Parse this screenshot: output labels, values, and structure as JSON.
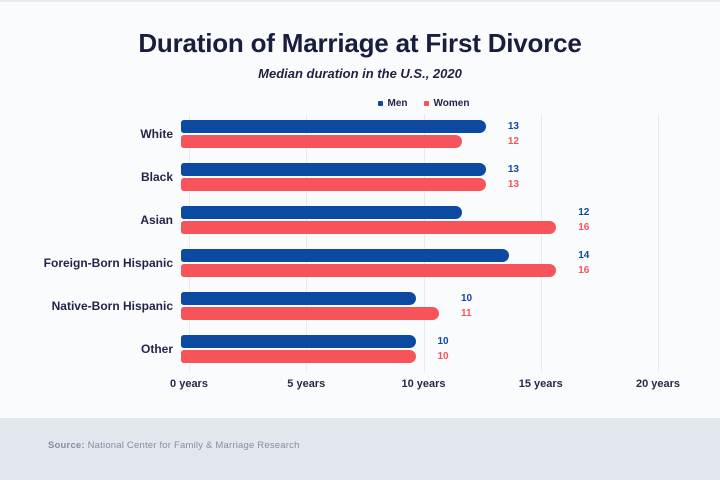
{
  "header": {
    "title": "Duration of Marriage at First Divorce",
    "subtitle": "Median duration in the U.S., 2020"
  },
  "chart_data": {
    "type": "bar",
    "orientation": "horizontal",
    "title": "Duration of Marriage at First Divorce",
    "subtitle": "Median duration in the U.S., 2020",
    "categories": [
      "White",
      "Black",
      "Asian",
      "Foreign-Born Hispanic",
      "Native-Born Hispanic",
      "Other"
    ],
    "series": [
      {
        "name": "Men",
        "color": "#0c4aa1",
        "values": [
          13,
          13,
          12,
          14,
          10,
          10
        ]
      },
      {
        "name": "Women",
        "color": "#f6545a",
        "values": [
          12,
          13,
          16,
          16,
          11,
          10
        ]
      }
    ],
    "xlim": [
      0,
      20
    ],
    "x_ticks": [
      0,
      5,
      10,
      15,
      20
    ],
    "x_tick_labels": [
      "0 years",
      "5 years",
      "10 years",
      "15 years",
      "20 years"
    ],
    "value_labels_shown": true,
    "legend_position": "top",
    "grid": "vertical-light"
  },
  "footer": {
    "source_label": "Source:",
    "source_text": " National Center for Family & Marriage Research"
  },
  "colors": {
    "men": "#0c4aa1",
    "women": "#f6545a",
    "title_text": "#191d3e",
    "background": "#fafbfd",
    "footer_background": "#e2e7ee",
    "gridline": "#e8eaef"
  }
}
